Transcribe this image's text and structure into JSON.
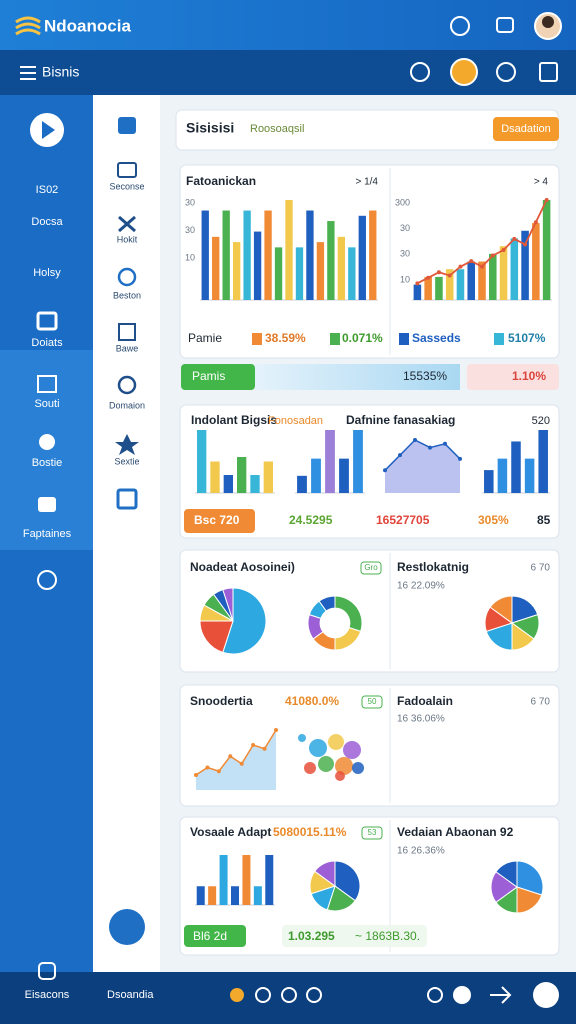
{
  "header": {
    "logo": "Ndoanocia"
  },
  "toolbar": {
    "title": "Bisnis"
  },
  "sidebar": {
    "items": [
      "IS02",
      "Docsa",
      "Holsy",
      "Doiats",
      "Souti",
      "Bostie",
      "Faptaines"
    ],
    "footer": "Eisacons"
  },
  "subnav": {
    "items": [
      "Seconse",
      "Hokit",
      "Beston",
      "Bawe",
      "Domaion",
      "Sextie"
    ]
  },
  "search": {
    "title": "Sisisisi",
    "subtitle": "Roosoaqsil",
    "button": "Dsadation"
  },
  "overview": {
    "left": {
      "title": "Fatoanickan",
      "badge": "> 1/4",
      "y_labels": [
        "30",
        "30",
        "10"
      ],
      "chart": {
        "type": "bar",
        "values": [
          85,
          60,
          85,
          55,
          85,
          65,
          85,
          50,
          95,
          50,
          85,
          55,
          75,
          60,
          50,
          80,
          85
        ],
        "colors": [
          "#1f5fbf",
          "#f08a35",
          "#4bb04f",
          "#f2c94c",
          "#38b6d8"
        ]
      }
    },
    "right": {
      "badge": "> 4",
      "y_labels": [
        "300",
        "30",
        "30",
        "10"
      ],
      "chart": {
        "type": "bar-line",
        "values": [
          10,
          15,
          15,
          20,
          20,
          25,
          25,
          30,
          35,
          40,
          45,
          50,
          65
        ],
        "line": [
          15,
          20,
          25,
          22,
          30,
          35,
          30,
          40,
          45,
          55,
          50,
          70,
          90
        ],
        "colors": [
          "#1f5fbf",
          "#f08a35",
          "#4bb04f",
          "#f2c94c",
          "#38b6d8"
        ],
        "line_color": "#e0573a"
      }
    },
    "legend": [
      "Pamie",
      "38.59%",
      "0.071%",
      "Sasseds",
      "5107%"
    ]
  },
  "progress": [
    "Pamis",
    "15535%",
    "1.10%"
  ],
  "trends": {
    "title": "Indolant Bigsis",
    "tag": "Fonosadan",
    "subtitle": "Dafnine fanasakiag",
    "badge": "520",
    "charts": [
      {
        "type": "bar",
        "values": [
          70,
          35,
          20,
          40,
          20,
          35
        ],
        "colors": [
          "#38b6d8",
          "#f2c94c",
          "#1f5fbf",
          "#4bb04f"
        ]
      },
      {
        "type": "bar",
        "values": [
          15,
          30,
          55,
          30,
          55
        ],
        "colors": [
          "#1f5fbf",
          "#2f8fe0",
          "#9c7fd6"
        ]
      },
      {
        "type": "area",
        "values": [
          30,
          50,
          70,
          60,
          65,
          45
        ],
        "colors": [
          "#9fa8e8",
          "#1f5fbf"
        ]
      },
      {
        "type": "bar",
        "values": [
          20,
          30,
          45,
          30,
          55
        ],
        "colors": [
          "#1f5fbf",
          "#2f8fe0"
        ]
      }
    ],
    "stats": [
      "Bsc 720",
      "24.5295",
      "16527705",
      "305%",
      "85"
    ]
  },
  "distribution": {
    "left": {
      "title": "Noadeat Aosoinei)",
      "badge": "Gro",
      "charts": [
        {
          "type": "pie",
          "values": [
            55,
            20,
            8,
            7,
            5,
            5
          ],
          "colors": [
            "#2ea8e0",
            "#e8503a",
            "#f2c94c",
            "#4bb04f",
            "#1f5fbf",
            "#9c5fd6"
          ]
        },
        {
          "type": "donut",
          "values": [
            30,
            20,
            15,
            15,
            10,
            10
          ],
          "colors": [
            "#4bb04f",
            "#f2c94c",
            "#f08a35",
            "#9c5fd6",
            "#2ea8e0",
            "#1f5fbf"
          ]
        }
      ]
    },
    "right": {
      "title": "Restlokatnig",
      "badge": "6 70",
      "subtitle": "16 22.09%",
      "charts": [
        {
          "type": "pie",
          "values": [
            20,
            15,
            15,
            20,
            15,
            15
          ],
          "colors": [
            "#1f5fbf",
            "#4bb04f",
            "#f2c94c",
            "#2ea8e0",
            "#e8503a",
            "#f08a35"
          ]
        }
      ]
    }
  },
  "growth": {
    "left": {
      "title": "Snoodertia",
      "value": "41080.0%",
      "badge": "50",
      "charts": [
        {
          "type": "area",
          "values": [
            20,
            30,
            25,
            45,
            35,
            60,
            55,
            80
          ],
          "colors": [
            "#a9d4f2",
            "#f08a35"
          ]
        }
      ]
    },
    "right": {
      "title": "Fadoalain",
      "badge": "6 70",
      "subtitle": "16 36.06%"
    }
  },
  "summary": {
    "left": {
      "title": "Vosaale Adapt",
      "value": "5080015.11%",
      "badge": "53",
      "charts": [
        {
          "type": "bar",
          "values": [
            15,
            15,
            40,
            15,
            40,
            15,
            40
          ],
          "colors": [
            "#1f5fbf",
            "#f08a35",
            "#2ea8e0"
          ]
        },
        {
          "type": "pie",
          "values": [
            35,
            20,
            15,
            15,
            15
          ],
          "colors": [
            "#1f5fbf",
            "#4bb04f",
            "#2ea8e0",
            "#f2c94c",
            "#9c5fd6"
          ]
        }
      ]
    },
    "right": {
      "title": "Vedaian Abaonan 92",
      "subtitle": "16 26.36%",
      "charts": [
        {
          "type": "pie",
          "values": [
            30,
            20,
            15,
            20,
            15
          ],
          "colors": [
            "#2f8fe0",
            "#f08a35",
            "#4bb04f",
            "#9c5fd6",
            "#1f5fbf"
          ]
        }
      ]
    },
    "stats": [
      "Bl6 2d",
      "1.03.295",
      "~ 1863B.30."
    ]
  },
  "footer": {
    "title": "Dsoandia"
  }
}
